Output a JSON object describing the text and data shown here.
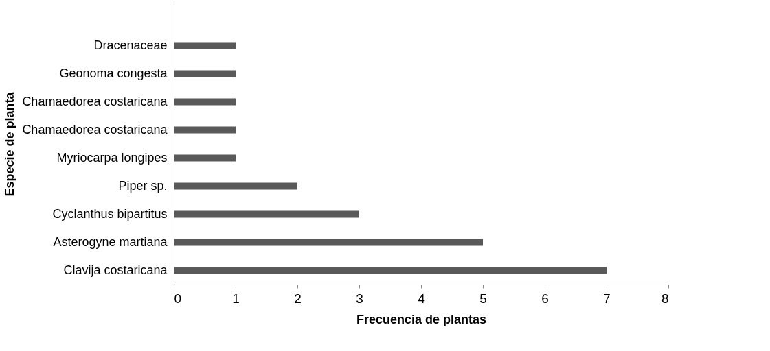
{
  "chart_data": {
    "type": "bar",
    "orientation": "horizontal",
    "xlabel": "Frecuencia de plantas",
    "ylabel": "Especie de planta",
    "categories": [
      "Dracenaceae",
      "Geonoma congesta",
      "Chamaedorea costaricana",
      "Chamaedorea costaricana",
      "Myriocarpa longipes",
      "Piper sp.",
      "Cyclanthus bipartitus",
      "Asterogyne martiana",
      "Clavija costaricana"
    ],
    "values": [
      1,
      1,
      1,
      1,
      1,
      2,
      3,
      5,
      7
    ],
    "color": "#595959",
    "xlim": [
      0,
      8
    ],
    "xticks": [
      0,
      1,
      2,
      3,
      4,
      5,
      6,
      7,
      8
    ],
    "grid": false
  }
}
